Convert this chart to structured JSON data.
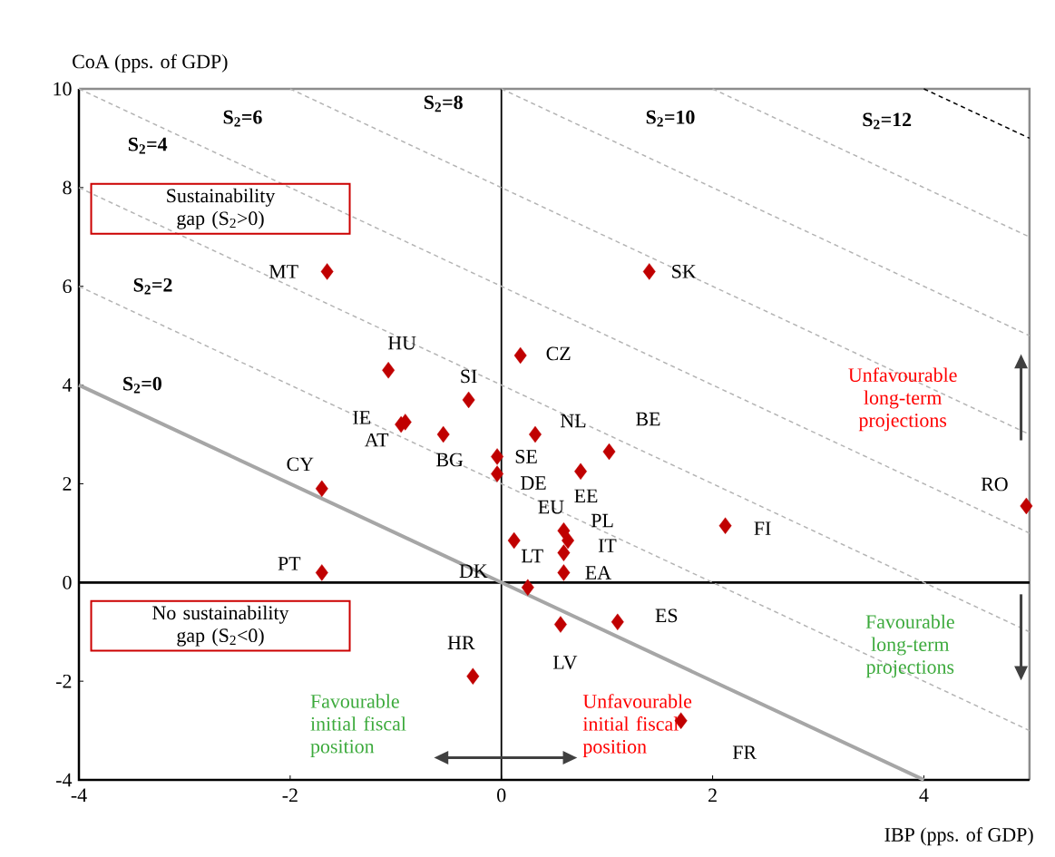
{
  "chart_data": {
    "type": "scatter",
    "xlabel": "IBP (pps. of GDP)",
    "ylabel": "CoA (pps. of GDP)",
    "xlim": [
      -4,
      5
    ],
    "ylim": [
      -4,
      10
    ],
    "xticks": [
      -4,
      -2,
      0,
      2,
      4
    ],
    "yticks": [
      -4,
      -2,
      0,
      2,
      4,
      6,
      8,
      10
    ],
    "marker": "diamond",
    "ref_lines": [
      {
        "axis": "x",
        "value": 0,
        "color": "#000000"
      },
      {
        "axis": "y",
        "value": 0,
        "color": "#000000"
      }
    ],
    "annotations": [
      "S$_{2}$=0",
      "S$_{2}$=2",
      "S$_{2}$=4",
      "S$_{2}$=6",
      "S$_{2}$=8",
      "S$_{2}$=10",
      "S$_{2}$=12",
      "Sustainability gap (S$_{2}$>0)",
      "No sustainability gap (S$_{2}$<0)",
      "Unfavourable long-term projections",
      "Favourable long-term projections",
      "Favourable initial fiscal position",
      "Unfavourable initial fiscal position"
    ],
    "series": [
      {
        "type": "line",
        "color": "#a6a6a6",
        "line_style": "solid",
        "marker": "none",
        "x": [
          -4,
          4
        ],
        "values": [
          4,
          -4
        ]
      },
      {
        "type": "line",
        "color": "#b4b4b4",
        "line_style": "dashed",
        "marker": "none",
        "x": [
          -4,
          5
        ],
        "values": [
          6,
          -3
        ]
      },
      {
        "type": "line",
        "color": "#b4b4b4",
        "line_style": "dashed",
        "marker": "none",
        "x": [
          -4,
          5
        ],
        "values": [
          8,
          -1
        ]
      },
      {
        "type": "line",
        "color": "#b4b4b4",
        "line_style": "dashed",
        "marker": "none",
        "x": [
          -4,
          5
        ],
        "values": [
          10,
          1
        ]
      },
      {
        "type": "line",
        "color": "#b4b4b4",
        "line_style": "dashed",
        "marker": "none",
        "x": [
          -2,
          5
        ],
        "values": [
          10,
          3
        ]
      },
      {
        "type": "line",
        "color": "#b4b4b4",
        "line_style": "dashed",
        "marker": "none",
        "x": [
          0,
          5
        ],
        "values": [
          10,
          5
        ]
      },
      {
        "type": "line",
        "color": "#b4b4b4",
        "line_style": "dashed",
        "marker": "none",
        "x": [
          2,
          5
        ],
        "values": [
          10,
          7
        ]
      },
      {
        "type": "line",
        "color": "#000000",
        "line_style": "dashed",
        "marker": "none",
        "x": [
          4,
          5
        ],
        "values": [
          10,
          9
        ]
      },
      {
        "name": "MT",
        "color": "#c00000",
        "x": [
          -1.65
        ],
        "values": [
          6.3
        ]
      },
      {
        "name": "SK",
        "color": "#c00000",
        "x": [
          1.4
        ],
        "values": [
          6.3
        ]
      },
      {
        "name": "CZ",
        "color": "#c00000",
        "x": [
          0.18
        ],
        "values": [
          4.6
        ]
      },
      {
        "name": "HU",
        "color": "#c00000",
        "x": [
          -1.07
        ],
        "values": [
          4.3
        ]
      },
      {
        "name": "SI",
        "color": "#c00000",
        "x": [
          -0.31
        ],
        "values": [
          3.7
        ]
      },
      {
        "name": "IE",
        "color": "#c00000",
        "x": [
          -0.91
        ],
        "values": [
          3.25
        ]
      },
      {
        "name": "AT",
        "color": "#c00000",
        "x": [
          -0.95
        ],
        "values": [
          3.2
        ]
      },
      {
        "name": "BG",
        "color": "#c00000",
        "x": [
          -0.55
        ],
        "values": [
          3.0
        ]
      },
      {
        "name": "NL",
        "color": "#c00000",
        "x": [
          0.32
        ],
        "values": [
          3.0
        ]
      },
      {
        "name": "BE",
        "color": "#c00000",
        "x": [
          1.02
        ],
        "values": [
          2.65
        ]
      },
      {
        "name": "SE",
        "color": "#c00000",
        "x": [
          -0.04
        ],
        "values": [
          2.55
        ]
      },
      {
        "name": "DE",
        "color": "#c00000",
        "x": [
          -0.04
        ],
        "values": [
          2.2
        ]
      },
      {
        "name": "EE",
        "color": "#c00000",
        "x": [
          0.75
        ],
        "values": [
          2.25
        ]
      },
      {
        "name": "CY",
        "color": "#c00000",
        "x": [
          -1.7
        ],
        "values": [
          1.9
        ]
      },
      {
        "name": "RO",
        "color": "#c00000",
        "x": [
          4.97
        ],
        "values": [
          1.55
        ]
      },
      {
        "name": "FI",
        "color": "#c00000",
        "x": [
          2.12
        ],
        "values": [
          1.15
        ]
      },
      {
        "name": "EU",
        "color": "#c00000",
        "x": [
          0.59
        ],
        "values": [
          1.05
        ]
      },
      {
        "name": "PL",
        "color": "#c00000",
        "x": [
          0.63
        ],
        "values": [
          0.85
        ]
      },
      {
        "name": "IT",
        "color": "#c00000",
        "x": [
          0.59
        ],
        "values": [
          0.6
        ]
      },
      {
        "name": "LT",
        "color": "#c00000",
        "x": [
          0.12
        ],
        "values": [
          0.85
        ]
      },
      {
        "name": "EA",
        "color": "#c00000",
        "x": [
          0.59
        ],
        "values": [
          0.2
        ]
      },
      {
        "name": "DK",
        "color": "#c00000",
        "x": [
          0.25
        ],
        "values": [
          -0.1
        ]
      },
      {
        "name": "PT",
        "color": "#c00000",
        "x": [
          -1.7
        ],
        "values": [
          0.2
        ]
      },
      {
        "name": "ES",
        "color": "#c00000",
        "x": [
          1.1
        ],
        "values": [
          -0.8
        ]
      },
      {
        "name": "LV",
        "color": "#c00000",
        "x": [
          0.56
        ],
        "values": [
          -0.85
        ]
      },
      {
        "name": "HR",
        "color": "#c00000",
        "x": [
          -0.27
        ],
        "values": [
          -1.9
        ]
      },
      {
        "name": "FR",
        "color": "#c00000",
        "x": [
          1.7
        ],
        "values": [
          -2.8
        ]
      }
    ]
  }
}
